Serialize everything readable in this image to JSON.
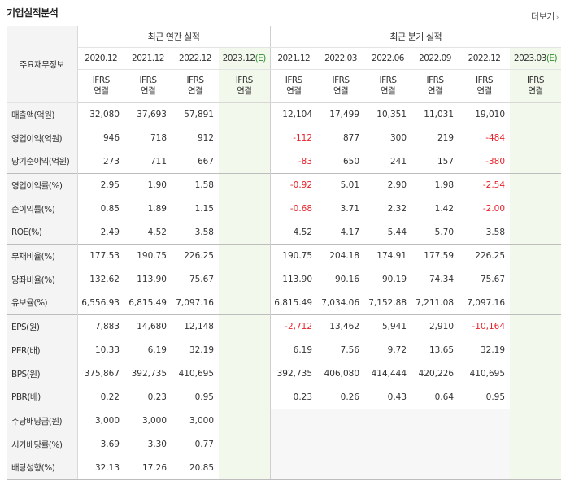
{
  "header": {
    "title": "기업실적분석",
    "more_label": "더보기"
  },
  "table": {
    "label_header": "주요재무정보",
    "group_annual": "최근 연간 실적",
    "group_quarter": "최근 분기 실적",
    "annual_periods": [
      "2020.12",
      "2021.12",
      "2022.12",
      "2023.12"
    ],
    "quarter_periods": [
      "2021.12",
      "2022.03",
      "2022.06",
      "2022.09",
      "2022.12",
      "2023.03"
    ],
    "estimate_mark": "(E)",
    "ifrs_line1": "IFRS",
    "ifrs_line2": "연결",
    "rows": [
      {
        "label": "매출액(억원)",
        "annual": [
          "32,080",
          "37,693",
          "57,891",
          ""
        ],
        "quarter": [
          "12,104",
          "17,499",
          "10,351",
          "11,031",
          "19,010",
          ""
        ]
      },
      {
        "label": "영업이익(억원)",
        "annual": [
          "946",
          "718",
          "912",
          ""
        ],
        "quarter": [
          "-112",
          "877",
          "300",
          "219",
          "-484",
          ""
        ]
      },
      {
        "label": "당기순이익(억원)",
        "annual": [
          "273",
          "711",
          "667",
          ""
        ],
        "quarter": [
          "-83",
          "650",
          "241",
          "157",
          "-380",
          ""
        ]
      },
      {
        "label": "영업이익률(%)",
        "annual": [
          "2.95",
          "1.90",
          "1.58",
          ""
        ],
        "quarter": [
          "-0.92",
          "5.01",
          "2.90",
          "1.98",
          "-2.54",
          ""
        ]
      },
      {
        "label": "순이익률(%)",
        "annual": [
          "0.85",
          "1.89",
          "1.15",
          ""
        ],
        "quarter": [
          "-0.68",
          "3.71",
          "2.32",
          "1.42",
          "-2.00",
          ""
        ]
      },
      {
        "label": "ROE(%)",
        "annual": [
          "2.49",
          "4.52",
          "3.58",
          ""
        ],
        "quarter": [
          "4.52",
          "4.17",
          "5.44",
          "5.70",
          "3.58",
          ""
        ]
      },
      {
        "label": "부채비율(%)",
        "annual": [
          "177.53",
          "190.75",
          "226.25",
          ""
        ],
        "quarter": [
          "190.75",
          "204.18",
          "174.91",
          "177.59",
          "226.25",
          ""
        ]
      },
      {
        "label": "당좌비율(%)",
        "annual": [
          "132.62",
          "113.90",
          "75.67",
          ""
        ],
        "quarter": [
          "113.90",
          "90.16",
          "90.19",
          "74.34",
          "75.67",
          ""
        ]
      },
      {
        "label": "유보율(%)",
        "annual": [
          "6,556.93",
          "6,815.49",
          "7,097.16",
          ""
        ],
        "quarter": [
          "6,815.49",
          "7,034.06",
          "7,152.88",
          "7,211.08",
          "7,097.16",
          ""
        ]
      },
      {
        "label": "EPS(원)",
        "annual": [
          "7,883",
          "14,680",
          "12,148",
          ""
        ],
        "quarter": [
          "-2,712",
          "13,462",
          "5,941",
          "2,910",
          "-10,164",
          ""
        ]
      },
      {
        "label": "PER(배)",
        "annual": [
          "10.33",
          "6.19",
          "32.19",
          ""
        ],
        "quarter": [
          "6.19",
          "7.56",
          "9.72",
          "13.65",
          "32.19",
          ""
        ]
      },
      {
        "label": "BPS(원)",
        "annual": [
          "375,867",
          "392,735",
          "410,695",
          ""
        ],
        "quarter": [
          "392,735",
          "406,080",
          "414,444",
          "420,226",
          "410,695",
          ""
        ]
      },
      {
        "label": "PBR(배)",
        "annual": [
          "0.22",
          "0.23",
          "0.95",
          ""
        ],
        "quarter": [
          "0.23",
          "0.26",
          "0.43",
          "0.64",
          "0.95",
          ""
        ]
      },
      {
        "label": "주당배당금(원)",
        "annual": [
          "3,000",
          "3,000",
          "3,000",
          ""
        ],
        "quarter": [
          "",
          "",
          "",
          "",
          "",
          ""
        ]
      },
      {
        "label": "시가배당률(%)",
        "annual": [
          "3.69",
          "3.30",
          "0.77",
          ""
        ],
        "quarter": [
          "",
          "",
          "",
          "",
          "",
          ""
        ]
      },
      {
        "label": "배당성향(%)",
        "annual": [
          "32.13",
          "17.26",
          "20.85",
          ""
        ],
        "quarter": [
          "",
          "",
          "",
          "",
          "",
          ""
        ]
      }
    ]
  },
  "colors": {
    "ifrs": "#e8740c",
    "negative": "#e8222a",
    "estimate": "#2e8b2e",
    "estimate_bg": "#f2f9ec"
  }
}
